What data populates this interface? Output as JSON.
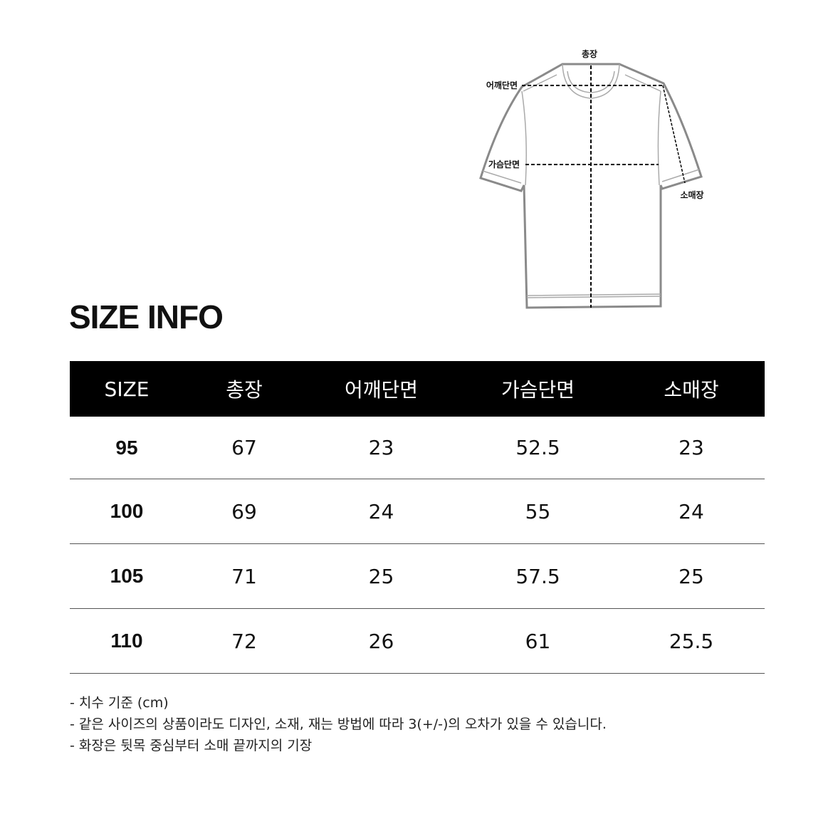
{
  "diagram": {
    "labels": {
      "total_length": "총장",
      "shoulder": "어깨단면",
      "chest": "가슴단면",
      "sleeve": "소매장"
    }
  },
  "title": "SIZE INFO",
  "table": {
    "headers": [
      "SIZE",
      "총장",
      "어깨단면",
      "가슴단면",
      "소매장"
    ],
    "rows": [
      [
        "95",
        "67",
        "23",
        "52.5",
        "23"
      ],
      [
        "100",
        "69",
        "24",
        "55",
        "24"
      ],
      [
        "105",
        "71",
        "25",
        "57.5",
        "25"
      ],
      [
        "110",
        "72",
        "26",
        "61",
        "25.5"
      ]
    ]
  },
  "notes": [
    "- 치수 기준 (cm)",
    "- 같은 사이즈의 상품이라도 디자인, 소재, 재는 방법에 따라 3(+/-)의 오차가 있을 수 있습니다.",
    "- 화장은 뒷목 중심부터 소매 끝까지의 기장"
  ]
}
